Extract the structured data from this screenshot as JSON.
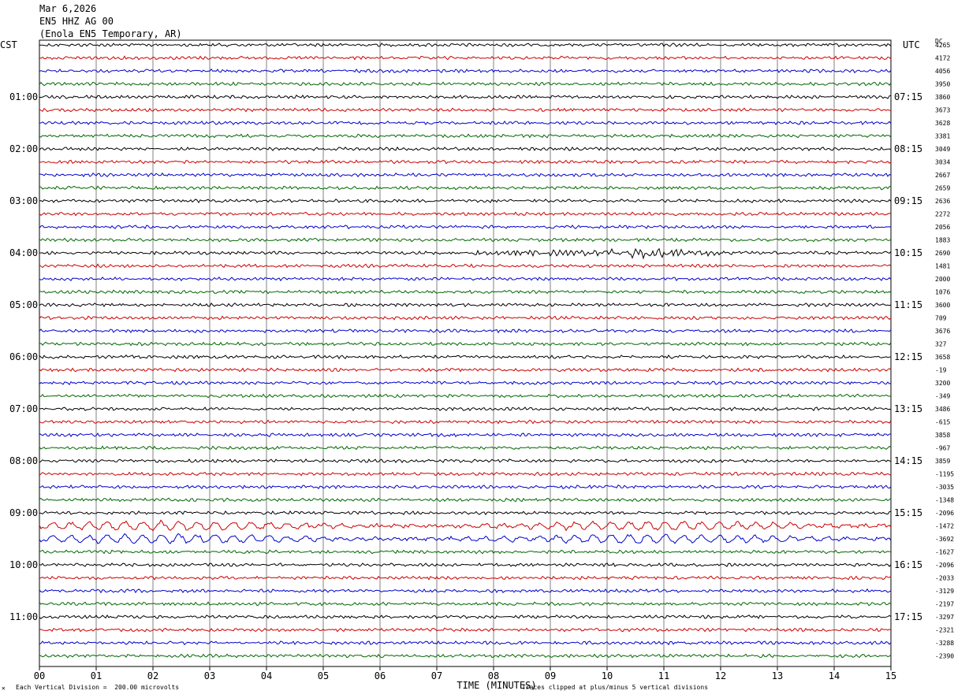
{
  "header": {
    "date": "Mar 6,2026",
    "channel": "EN5 HHZ AG 00",
    "station": "(Enola EN5 Temporary, AR)"
  },
  "left_axis_title": "CST",
  "right_axis_title": "UTC",
  "dc_title": "DC",
  "footer": {
    "scale_note": "Each Vertical Division =  200.00 microvolts",
    "clip_note": "Traces clipped at plus/minus 5 vertical divisions",
    "corner_mark": "✕"
  },
  "colors": {
    "line1": "#000000",
    "line2": "#cc0000",
    "line3": "#0000cc",
    "line4": "#006600",
    "grid": "#808080"
  },
  "chart_data": {
    "type": "line",
    "title": "",
    "xlabel": "TIME (MINUTES)",
    "xlim": [
      0,
      15
    ],
    "x_ticks": [
      "00",
      "01",
      "02",
      "03",
      "04",
      "05",
      "06",
      "07",
      "08",
      "09",
      "10",
      "11",
      "12",
      "13",
      "14",
      "15"
    ],
    "rows": 48,
    "row_colors": [
      "#000000",
      "#cc0000",
      "#0000cc",
      "#006600"
    ],
    "cst_labels": [
      "01:00",
      "02:00",
      "03:00",
      "04:00",
      "05:00",
      "06:00",
      "07:00",
      "08:00",
      "09:00",
      "10:00",
      "11:00"
    ],
    "utc_labels": [
      "07:15",
      "08:15",
      "09:15",
      "10:15",
      "11:15",
      "12:15",
      "13:15",
      "14:15",
      "15:15",
      "16:15",
      "17:15"
    ],
    "dc_values": [
      "4265",
      "4172",
      "4056",
      "3950",
      "3860",
      "3673",
      "3628",
      "3381",
      "3049",
      "3034",
      "2667",
      "2659",
      "2636",
      "2272",
      "2056",
      "1883",
      "2690",
      "1481",
      "2000",
      "1076",
      "3600",
      "709",
      "3676",
      "327",
      "3658",
      "-19",
      "3200",
      "-349",
      "3486",
      "-615",
      "3858",
      "-967",
      "3859",
      "-1195",
      "-3035",
      "-1348",
      "-2096",
      "-1472",
      "-3692",
      "-1627",
      "-2096",
      "-2033",
      "-3129",
      "-2197",
      "-3297",
      "-2321",
      "-3288",
      "-2390"
    ]
  }
}
